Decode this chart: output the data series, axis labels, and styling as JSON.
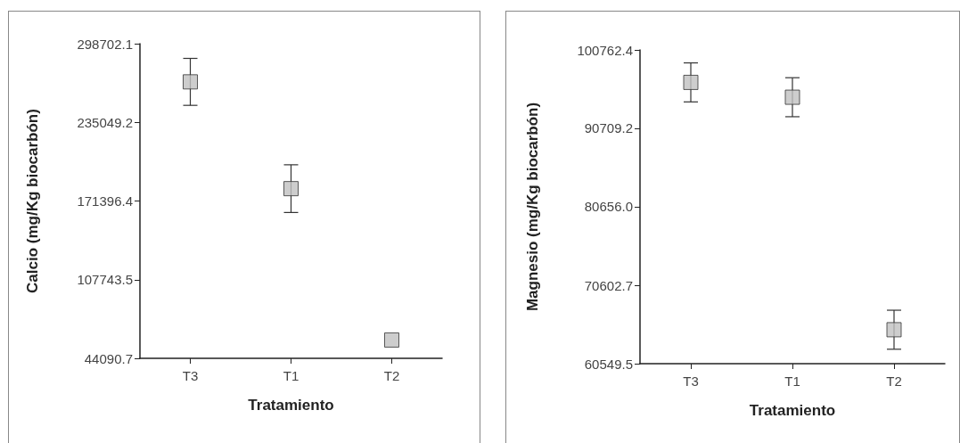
{
  "chart_data": [
    {
      "type": "scatter",
      "xlabel": "Tratamiento",
      "ylabel": "Calcio (mg/Kg biocarbón)",
      "categories": [
        "T3",
        "T1",
        "T2"
      ],
      "marker": "square",
      "grid": false,
      "ylim": [
        44090.7,
        298702.1
      ],
      "yticks": [
        44090.7,
        107743.5,
        171396.4,
        235049.2,
        298702.1
      ],
      "series": [
        {
          "color": "#c0c0c0",
          "values": [
            267800,
            181400,
            58900
          ],
          "errors": [
            19000,
            19300,
            null
          ]
        }
      ]
    },
    {
      "type": "scatter",
      "xlabel": "Tratamiento",
      "ylabel": "Magnesio (mg/Kg biocarbón)",
      "categories": [
        "T3",
        "T1",
        "T2"
      ],
      "marker": "square",
      "grid": false,
      "ylim": [
        60549.5,
        100762.4
      ],
      "yticks": [
        60549.5,
        70602.7,
        {
          "value": 80656,
          "label": "80656.0"
        },
        90709.2,
        100762.4
      ],
      "series": [
        {
          "color": "#c0c0c0",
          "values": [
            96600,
            94700,
            64900
          ],
          "errors": [
            2500,
            2500,
            2500
          ]
        }
      ]
    }
  ]
}
